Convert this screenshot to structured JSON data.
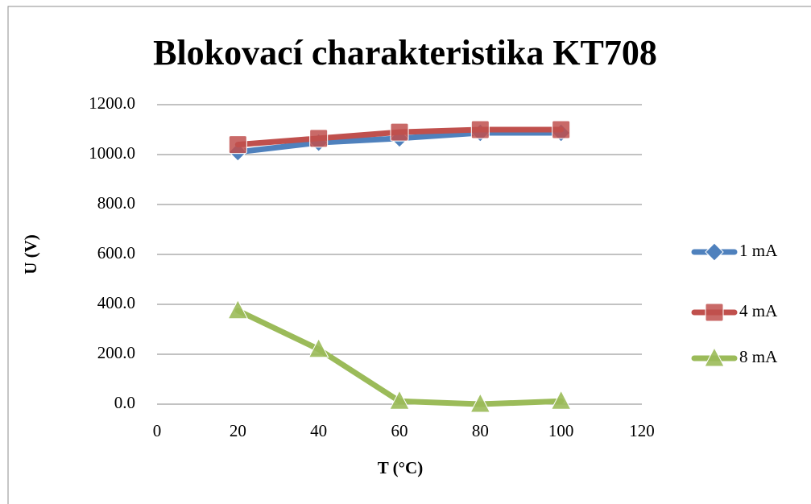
{
  "chart_data": {
    "type": "line",
    "title": "Blokovací charakteristika KT708",
    "x_label": "T (°C)",
    "y_label": "U (V)",
    "x": [
      20,
      40,
      60,
      80,
      100
    ],
    "series": [
      {
        "name": "1 mA",
        "color": "#4f81bd",
        "marker": "diamond",
        "values": [
          1010,
          1048,
          1065,
          1087,
          1087
        ]
      },
      {
        "name": "4 mA",
        "color": "#c0504d",
        "marker": "square",
        "values": [
          1040,
          1065,
          1090,
          1100,
          1100
        ]
      },
      {
        "name": "8 mA",
        "color": "#9bbb59",
        "marker": "triangle",
        "values": [
          375,
          220,
          12,
          0,
          12
        ]
      }
    ],
    "xlim": [
      0,
      120
    ],
    "xticks": [
      0,
      20,
      40,
      60,
      80,
      100,
      120
    ],
    "ylim": [
      0,
      1200
    ],
    "yticks": [
      {
        "value": 0,
        "label": "0.0"
      },
      {
        "value": 200,
        "label": "200.0"
      },
      {
        "value": 400,
        "label": "400.0"
      },
      {
        "value": 600,
        "label": "600.0"
      },
      {
        "value": 800,
        "label": "800.0"
      },
      {
        "value": 1000,
        "label": "1000.0"
      },
      {
        "value": 1200,
        "label": "1200.0"
      }
    ],
    "grid": true,
    "legend": "right"
  }
}
